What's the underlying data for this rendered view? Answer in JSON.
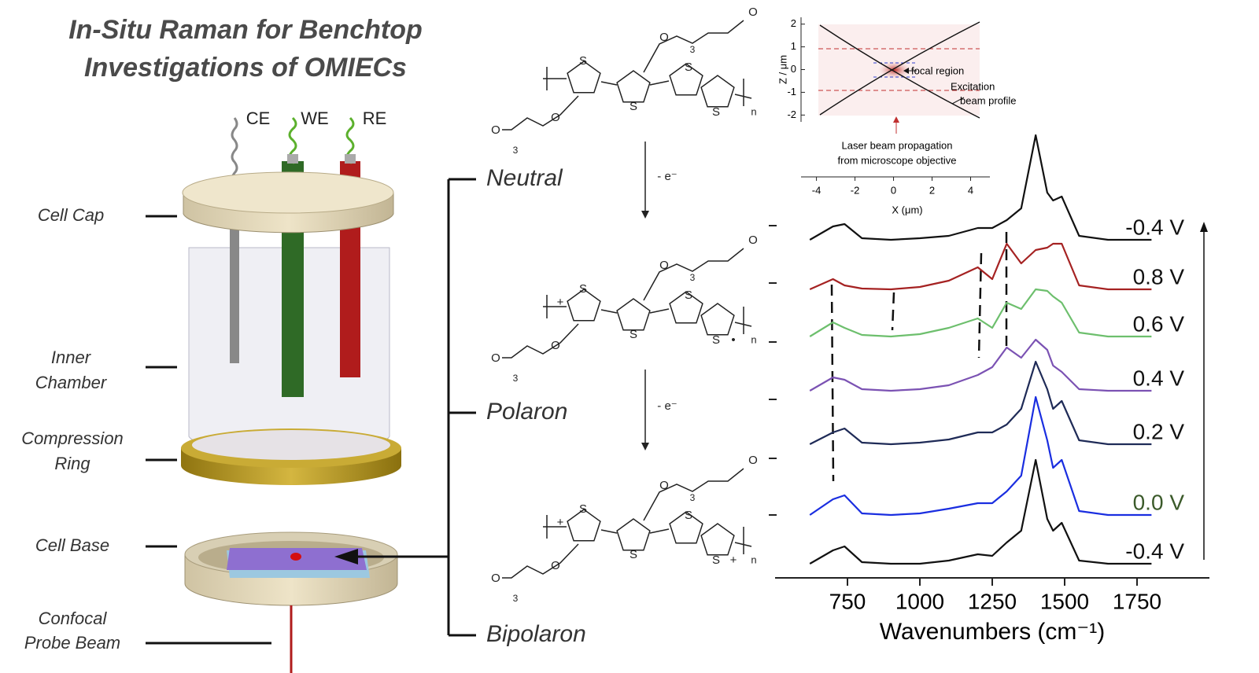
{
  "title": [
    "In-Situ Raman for Benchtop",
    "Investigations of OMIECs"
  ],
  "cell": {
    "electrodes": [
      "CE",
      "WE",
      "RE"
    ],
    "parts": [
      [
        "Cell Cap"
      ],
      [
        "Inner",
        "Chamber"
      ],
      [
        "Compression",
        "Ring"
      ],
      [
        "Cell Base"
      ],
      [
        "Confocal",
        "Probe Beam"
      ]
    ]
  },
  "scheme": {
    "states": [
      "Neutral",
      "Polaron",
      "Bipolaron"
    ],
    "steps": [
      "- e⁻",
      "- e⁻"
    ],
    "structures": [
      {
        "rings": [
          "S",
          "S",
          "S",
          "S"
        ],
        "chains": [
          "O",
          "O",
          "O",
          "O"
        ],
        "repeats": [
          "3",
          "3"
        ],
        "end": "n",
        "charges": []
      },
      {
        "rings": [
          "S",
          "S",
          "S",
          "S"
        ],
        "chains": [
          "O",
          "O",
          "O",
          "O"
        ],
        "repeats": [
          "3",
          "3"
        ],
        "end": "n",
        "charges": [
          "+",
          "•"
        ]
      },
      {
        "rings": [
          "S",
          "S",
          "S",
          "S"
        ],
        "chains": [
          "O",
          "O",
          "O",
          "O"
        ],
        "repeats": [
          "3",
          "3"
        ],
        "end": "n",
        "charges": [
          "+",
          "+"
        ]
      }
    ]
  },
  "chart_data": [
    {
      "type": "line",
      "x_label": "Wavenumbers (cm⁻¹)",
      "xlim": [
        500,
        2000
      ],
      "xticks": [
        750,
        1000,
        1250,
        1500,
        1750
      ],
      "ylim": [
        0,
        725
      ],
      "x": [
        620,
        700,
        740,
        800,
        900,
        1000,
        1100,
        1200,
        1250,
        1300,
        1350,
        1400,
        1440,
        1460,
        1490,
        1550,
        1650,
        1800
      ],
      "series": [
        {
          "name": "-0.4 V",
          "color": "#111111",
          "label_color": "#111111",
          "values": [
            430,
            447,
            450,
            432,
            430,
            432,
            435,
            445,
            445,
            455,
            470,
            563,
            490,
            480,
            485,
            435,
            430,
            430
          ]
        },
        {
          "name": "0.8 V",
          "color": "#a52222",
          "label_color": "#111111",
          "values": [
            367,
            380,
            372,
            368,
            367,
            370,
            378,
            395,
            380,
            425,
            400,
            417,
            420,
            425,
            425,
            372,
            367,
            367
          ]
        },
        {
          "name": "0.6 V",
          "color": "#6dbf6d",
          "label_color": "#111111",
          "values": [
            307,
            325,
            318,
            309,
            307,
            310,
            318,
            330,
            318,
            350,
            342,
            367,
            365,
            358,
            350,
            312,
            307,
            307
          ]
        },
        {
          "name": "0.4 V",
          "color": "#7b52b3",
          "label_color": "#111111",
          "values": [
            238,
            255,
            252,
            240,
            238,
            240,
            245,
            258,
            268,
            293,
            280,
            303,
            290,
            270,
            262,
            240,
            238,
            238
          ]
        },
        {
          "name": "0.2 V",
          "color": "#1f2b57",
          "label_color": "#111111",
          "values": [
            170,
            185,
            190,
            172,
            170,
            172,
            176,
            185,
            185,
            195,
            215,
            275,
            240,
            215,
            225,
            175,
            170,
            170
          ]
        },
        {
          "name": "0.0 V",
          "color": "#1a2ee0",
          "label_color": "#3b5a2a",
          "values": [
            80,
            100,
            105,
            82,
            80,
            82,
            88,
            95,
            95,
            110,
            130,
            230,
            175,
            140,
            150,
            85,
            80,
            80
          ]
        },
        {
          "name": "-0.4 V",
          "color": "#111111",
          "label_color": "#111111",
          "values": [
            18,
            35,
            40,
            20,
            18,
            18,
            22,
            30,
            28,
            45,
            60,
            150,
            75,
            60,
            70,
            22,
            18,
            18
          ]
        }
      ]
    },
    {
      "type": "line",
      "x_label": "X (μm)",
      "y_label": "Z / μm",
      "xlim": [
        -4.8,
        5
      ],
      "ylim": [
        -2.3,
        2.3
      ],
      "xticks": [
        -4,
        -2,
        0,
        2,
        4
      ],
      "yticks": [
        2,
        1,
        0,
        -1,
        -2
      ],
      "annotations": [
        "focal region",
        "Excitation",
        "beam profile",
        "Laser beam propagation",
        "from microscope objective"
      ]
    }
  ]
}
